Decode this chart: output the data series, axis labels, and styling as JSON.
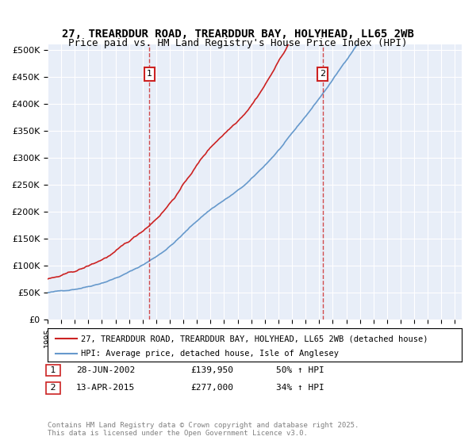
{
  "title_line1": "27, TREARDDUR ROAD, TREARDDUR BAY, HOLYHEAD, LL65 2WB",
  "title_line2": "Price paid vs. HM Land Registry's House Price Index (HPI)",
  "ylabel": "",
  "xlabel": "",
  "ylim": [
    0,
    510000
  ],
  "yticks": [
    0,
    50000,
    100000,
    150000,
    200000,
    250000,
    300000,
    350000,
    400000,
    450000,
    500000
  ],
  "ytick_labels": [
    "£0",
    "£50K",
    "£100K",
    "£150K",
    "£200K",
    "£250K",
    "£300K",
    "£350K",
    "£400K",
    "£450K",
    "£500K"
  ],
  "background_color": "#e8eef8",
  "plot_bg_color": "#e8eef8",
  "hpi_color": "#6699cc",
  "price_color": "#cc2222",
  "marker1_date_idx": 7.5,
  "marker2_date_idx": 20.3,
  "marker1_label": "1",
  "marker2_label": "2",
  "legend_line1": "27, TREARDDUR ROAD, TREARDDUR BAY, HOLYHEAD, LL65 2WB (detached house)",
  "legend_line2": "HPI: Average price, detached house, Isle of Anglesey",
  "table_row1": [
    "1",
    "28-JUN-2002",
    "£139,950",
    "50% ↑ HPI"
  ],
  "table_row2": [
    "2",
    "13-APR-2015",
    "£277,000",
    "34% ↑ HPI"
  ],
  "footnote": "Contains HM Land Registry data © Crown copyright and database right 2025.\nThis data is licensed under the Open Government Licence v3.0.",
  "title_fontsize": 10,
  "subtitle_fontsize": 9
}
